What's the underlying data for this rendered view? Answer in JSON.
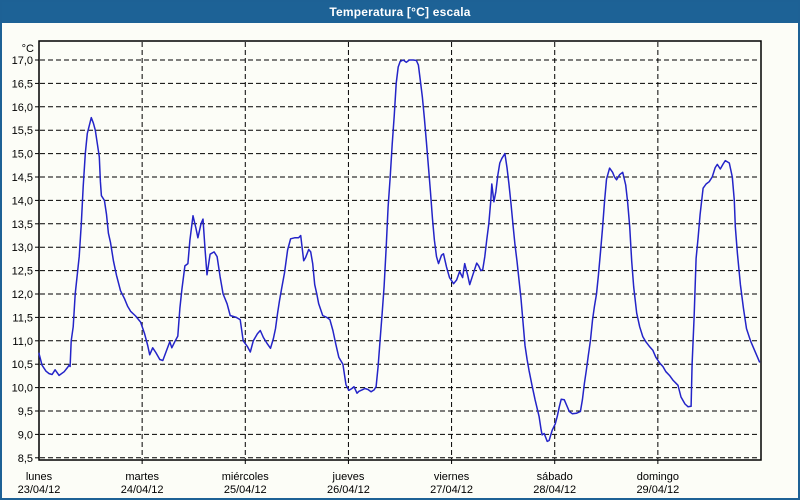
{
  "window": {
    "title": "Temperatura [°C] escala",
    "title_bar_color": "#1d6296",
    "title_text_color": "#ffffff",
    "border_color": "#1d6195",
    "background_color": "#fcfdf7"
  },
  "chart_data": {
    "type": "line",
    "title": "Temperatura [°C] escala",
    "grid": "dashed",
    "grid_color": "#000000",
    "frame_color": "#000000",
    "line_color": "#2424c8",
    "legend": "none",
    "y_axis": {
      "unit_label": "°C",
      "min": 8.5,
      "max": 17.0,
      "step": 0.5,
      "ticks": [
        {
          "value": 17.0,
          "label": "17,0"
        },
        {
          "value": 16.5,
          "label": "16,5"
        },
        {
          "value": 16.0,
          "label": "16,0"
        },
        {
          "value": 15.5,
          "label": "15,5"
        },
        {
          "value": 15.0,
          "label": "15,0"
        },
        {
          "value": 14.5,
          "label": "14,5"
        },
        {
          "value": 14.0,
          "label": "14,0"
        },
        {
          "value": 13.5,
          "label": "13,5"
        },
        {
          "value": 13.0,
          "label": "13,0"
        },
        {
          "value": 12.5,
          "label": "12,5"
        },
        {
          "value": 12.0,
          "label": "12,0"
        },
        {
          "value": 11.5,
          "label": "11,5"
        },
        {
          "value": 11.0,
          "label": "11,0"
        },
        {
          "value": 10.5,
          "label": "10,5"
        },
        {
          "value": 10.0,
          "label": "10,0"
        },
        {
          "value": 9.5,
          "label": "9,5"
        },
        {
          "value": 9.0,
          "label": "9,0"
        },
        {
          "value": 8.5,
          "label": "8,5"
        }
      ]
    },
    "x_axis": {
      "unit": "days",
      "days": [
        {
          "name": "lunes",
          "date": "23/04/12"
        },
        {
          "name": "martes",
          "date": "24/04/12"
        },
        {
          "name": "miércoles",
          "date": "25/04/12"
        },
        {
          "name": "jueves",
          "date": "26/04/12"
        },
        {
          "name": "viernes",
          "date": "27/04/12"
        },
        {
          "name": "sábado",
          "date": "28/04/12"
        },
        {
          "name": "domingo",
          "date": "29/04/12"
        }
      ]
    },
    "series": [
      {
        "name": "Temperatura",
        "x_unit": "days_since_monday_00h",
        "points": [
          [
            0.0,
            10.73
          ],
          [
            0.029,
            10.48
          ],
          [
            0.068,
            10.35
          ],
          [
            0.098,
            10.3
          ],
          [
            0.127,
            10.28
          ],
          [
            0.156,
            10.38
          ],
          [
            0.195,
            10.26
          ],
          [
            0.244,
            10.34
          ],
          [
            0.273,
            10.42
          ],
          [
            0.293,
            10.48
          ],
          [
            0.302,
            10.45
          ],
          [
            0.312,
            11.0
          ],
          [
            0.332,
            11.3
          ],
          [
            0.351,
            12.0
          ],
          [
            0.39,
            12.8
          ],
          [
            0.41,
            13.5
          ],
          [
            0.429,
            14.3
          ],
          [
            0.449,
            15.0
          ],
          [
            0.468,
            15.43
          ],
          [
            0.488,
            15.6
          ],
          [
            0.507,
            15.77
          ],
          [
            0.527,
            15.65
          ],
          [
            0.546,
            15.5
          ],
          [
            0.566,
            15.2
          ],
          [
            0.585,
            14.93
          ],
          [
            0.595,
            14.4
          ],
          [
            0.605,
            14.1
          ],
          [
            0.634,
            14.0
          ],
          [
            0.654,
            13.7
          ],
          [
            0.673,
            13.3
          ],
          [
            0.693,
            13.1
          ],
          [
            0.722,
            12.7
          ],
          [
            0.751,
            12.4
          ],
          [
            0.79,
            12.07
          ],
          [
            0.829,
            11.9
          ],
          [
            0.859,
            11.74
          ],
          [
            0.888,
            11.63
          ],
          [
            0.937,
            11.53
          ],
          [
            0.985,
            11.4
          ],
          [
            1.024,
            11.15
          ],
          [
            1.054,
            10.9
          ],
          [
            1.073,
            10.7
          ],
          [
            1.102,
            10.85
          ],
          [
            1.132,
            10.75
          ],
          [
            1.171,
            10.6
          ],
          [
            1.2,
            10.58
          ],
          [
            1.229,
            10.75
          ],
          [
            1.268,
            10.98
          ],
          [
            1.288,
            10.85
          ],
          [
            1.317,
            10.98
          ],
          [
            1.346,
            11.1
          ],
          [
            1.366,
            11.7
          ],
          [
            1.385,
            12.1
          ],
          [
            1.415,
            12.6
          ],
          [
            1.444,
            12.65
          ],
          [
            1.463,
            13.15
          ],
          [
            1.493,
            13.67
          ],
          [
            1.522,
            13.4
          ],
          [
            1.541,
            13.2
          ],
          [
            1.571,
            13.5
          ],
          [
            1.59,
            13.6
          ],
          [
            1.61,
            12.94
          ],
          [
            1.629,
            12.41
          ],
          [
            1.659,
            12.85
          ],
          [
            1.698,
            12.9
          ],
          [
            1.727,
            12.8
          ],
          [
            1.756,
            12.37
          ],
          [
            1.785,
            12.0
          ],
          [
            1.824,
            11.79
          ],
          [
            1.854,
            11.54
          ],
          [
            1.912,
            11.5
          ],
          [
            1.951,
            11.45
          ],
          [
            1.98,
            11.0
          ],
          [
            2.02,
            10.88
          ],
          [
            2.049,
            10.76
          ],
          [
            2.078,
            11.0
          ],
          [
            2.117,
            11.15
          ],
          [
            2.146,
            11.22
          ],
          [
            2.176,
            11.07
          ],
          [
            2.215,
            10.93
          ],
          [
            2.244,
            10.84
          ],
          [
            2.273,
            11.05
          ],
          [
            2.293,
            11.26
          ],
          [
            2.312,
            11.58
          ],
          [
            2.332,
            11.86
          ],
          [
            2.351,
            12.1
          ],
          [
            2.38,
            12.45
          ],
          [
            2.41,
            12.94
          ],
          [
            2.439,
            13.18
          ],
          [
            2.478,
            13.2
          ],
          [
            2.517,
            13.2
          ],
          [
            2.537,
            13.25
          ],
          [
            2.566,
            12.71
          ],
          [
            2.585,
            12.78
          ],
          [
            2.615,
            12.95
          ],
          [
            2.634,
            12.9
          ],
          [
            2.654,
            12.65
          ],
          [
            2.673,
            12.2
          ],
          [
            2.693,
            12.0
          ],
          [
            2.712,
            11.79
          ],
          [
            2.751,
            11.54
          ],
          [
            2.79,
            11.5
          ],
          [
            2.82,
            11.45
          ],
          [
            2.849,
            11.22
          ],
          [
            2.878,
            10.93
          ],
          [
            2.907,
            10.65
          ],
          [
            2.946,
            10.5
          ],
          [
            2.976,
            10.06
          ],
          [
            3.005,
            9.94
          ],
          [
            3.034,
            9.98
          ],
          [
            3.054,
            10.02
          ],
          [
            3.083,
            9.88
          ],
          [
            3.102,
            9.92
          ],
          [
            3.132,
            9.95
          ],
          [
            3.161,
            9.98
          ],
          [
            3.19,
            9.96
          ],
          [
            3.22,
            9.91
          ],
          [
            3.249,
            9.95
          ],
          [
            3.268,
            10.02
          ],
          [
            3.288,
            10.45
          ],
          [
            3.307,
            11.02
          ],
          [
            3.327,
            11.6
          ],
          [
            3.346,
            12.16
          ],
          [
            3.366,
            13.0
          ],
          [
            3.385,
            13.86
          ],
          [
            3.405,
            14.5
          ],
          [
            3.424,
            15.2
          ],
          [
            3.444,
            15.8
          ],
          [
            3.463,
            16.5
          ],
          [
            3.483,
            16.85
          ],
          [
            3.502,
            16.97
          ],
          [
            3.532,
            17.0
          ],
          [
            3.561,
            16.95
          ],
          [
            3.59,
            17.0
          ],
          [
            3.629,
            17.0
          ],
          [
            3.659,
            16.99
          ],
          [
            3.678,
            16.89
          ],
          [
            3.698,
            16.55
          ],
          [
            3.717,
            16.2
          ],
          [
            3.737,
            15.75
          ],
          [
            3.756,
            15.25
          ],
          [
            3.776,
            14.7
          ],
          [
            3.795,
            14.2
          ],
          [
            3.815,
            13.6
          ],
          [
            3.834,
            13.15
          ],
          [
            3.854,
            12.8
          ],
          [
            3.873,
            12.65
          ],
          [
            3.902,
            12.83
          ],
          [
            3.922,
            12.86
          ],
          [
            3.951,
            12.58
          ],
          [
            3.98,
            12.35
          ],
          [
            4.02,
            12.22
          ],
          [
            4.049,
            12.3
          ],
          [
            4.078,
            12.48
          ],
          [
            4.107,
            12.35
          ],
          [
            4.127,
            12.65
          ],
          [
            4.156,
            12.4
          ],
          [
            4.176,
            12.2
          ],
          [
            4.205,
            12.4
          ],
          [
            4.244,
            12.66
          ],
          [
            4.263,
            12.6
          ],
          [
            4.283,
            12.5
          ],
          [
            4.302,
            12.52
          ],
          [
            4.322,
            12.8
          ],
          [
            4.341,
            13.15
          ],
          [
            4.361,
            13.5
          ],
          [
            4.38,
            14.0
          ],
          [
            4.39,
            14.35
          ],
          [
            4.41,
            13.97
          ],
          [
            4.429,
            14.18
          ],
          [
            4.449,
            14.55
          ],
          [
            4.468,
            14.8
          ],
          [
            4.488,
            14.9
          ],
          [
            4.517,
            15.0
          ],
          [
            4.537,
            14.7
          ],
          [
            4.556,
            14.36
          ],
          [
            4.576,
            13.93
          ],
          [
            4.595,
            13.5
          ],
          [
            4.615,
            13.05
          ],
          [
            4.634,
            12.7
          ],
          [
            4.654,
            12.3
          ],
          [
            4.673,
            11.9
          ],
          [
            4.693,
            11.4
          ],
          [
            4.712,
            10.9
          ],
          [
            4.732,
            10.6
          ],
          [
            4.751,
            10.37
          ],
          [
            4.78,
            10.05
          ],
          [
            4.81,
            9.74
          ],
          [
            4.849,
            9.38
          ],
          [
            4.868,
            9.1
          ],
          [
            4.878,
            8.99
          ],
          [
            4.898,
            9.02
          ],
          [
            4.927,
            8.85
          ],
          [
            4.946,
            8.87
          ],
          [
            4.976,
            9.09
          ],
          [
            5.005,
            9.22
          ],
          [
            5.024,
            9.38
          ],
          [
            5.044,
            9.59
          ],
          [
            5.063,
            9.75
          ],
          [
            5.093,
            9.74
          ],
          [
            5.141,
            9.49
          ],
          [
            5.171,
            9.44
          ],
          [
            5.21,
            9.45
          ],
          [
            5.249,
            9.49
          ],
          [
            5.268,
            9.74
          ],
          [
            5.288,
            10.09
          ],
          [
            5.307,
            10.38
          ],
          [
            5.327,
            10.7
          ],
          [
            5.346,
            11.0
          ],
          [
            5.366,
            11.44
          ],
          [
            5.385,
            11.73
          ],
          [
            5.405,
            12.0
          ],
          [
            5.424,
            12.4
          ],
          [
            5.444,
            12.9
          ],
          [
            5.463,
            13.4
          ],
          [
            5.483,
            13.97
          ],
          [
            5.502,
            14.45
          ],
          [
            5.532,
            14.69
          ],
          [
            5.561,
            14.6
          ],
          [
            5.58,
            14.5
          ],
          [
            5.6,
            14.44
          ],
          [
            5.629,
            14.55
          ],
          [
            5.659,
            14.6
          ],
          [
            5.688,
            14.33
          ],
          [
            5.707,
            13.97
          ],
          [
            5.727,
            13.44
          ],
          [
            5.746,
            12.7
          ],
          [
            5.766,
            12.15
          ],
          [
            5.795,
            11.59
          ],
          [
            5.824,
            11.3
          ],
          [
            5.854,
            11.09
          ],
          [
            5.883,
            10.98
          ],
          [
            5.922,
            10.87
          ],
          [
            5.951,
            10.8
          ],
          [
            5.98,
            10.65
          ],
          [
            6.02,
            10.52
          ],
          [
            6.049,
            10.45
          ],
          [
            6.078,
            10.34
          ],
          [
            6.117,
            10.25
          ],
          [
            6.146,
            10.16
          ],
          [
            6.195,
            10.05
          ],
          [
            6.224,
            9.8
          ],
          [
            6.263,
            9.65
          ],
          [
            6.293,
            9.59
          ],
          [
            6.322,
            9.6
          ],
          [
            6.332,
            10.5
          ],
          [
            6.351,
            11.5
          ],
          [
            6.371,
            12.76
          ],
          [
            6.39,
            13.2
          ],
          [
            6.41,
            13.7
          ],
          [
            6.439,
            14.26
          ],
          [
            6.468,
            14.35
          ],
          [
            6.498,
            14.4
          ],
          [
            6.527,
            14.5
          ],
          [
            6.556,
            14.7
          ],
          [
            6.576,
            14.77
          ],
          [
            6.605,
            14.67
          ],
          [
            6.634,
            14.78
          ],
          [
            6.654,
            14.85
          ],
          [
            6.693,
            14.8
          ],
          [
            6.722,
            14.5
          ],
          [
            6.741,
            14.0
          ],
          [
            6.751,
            13.44
          ],
          [
            6.771,
            12.87
          ],
          [
            6.8,
            12.2
          ],
          [
            6.829,
            11.7
          ],
          [
            6.859,
            11.26
          ],
          [
            6.898,
            11.0
          ],
          [
            6.937,
            10.8
          ],
          [
            6.966,
            10.65
          ],
          [
            6.985,
            10.55
          ]
        ]
      }
    ]
  }
}
